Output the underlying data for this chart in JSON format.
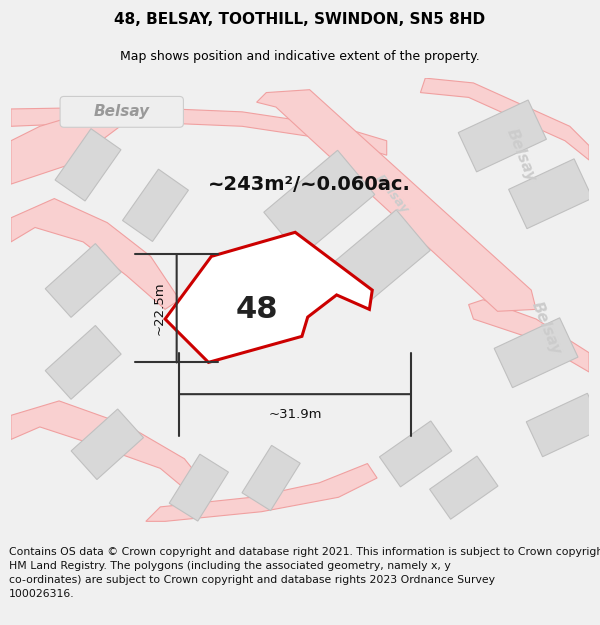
{
  "title": "48, BELSAY, TOOTHILL, SWINDON, SN5 8HD",
  "subtitle": "Map shows position and indicative extent of the property.",
  "footer": "Contains OS data © Crown copyright and database right 2021. This information is subject to Crown copyright and database rights 2023 and is reproduced with the permission of\nHM Land Registry. The polygons (including the associated geometry, namely x, y\nco-ordinates) are subject to Crown copyright and database rights 2023 Ordnance Survey\n100026316.",
  "bg_map": "#f7f7f7",
  "bg_outer": "#f0f0f0",
  "plot_fill": "#ffffff",
  "plot_border": "#cc0000",
  "road_fill": "#f9d0d0",
  "road_edge": "#f0a0a0",
  "block_fill": "#d8d8d8",
  "block_edge": "#c0c0c0",
  "street_label_color": "#cccccc",
  "dim_color": "#333333",
  "area_text": "~243m²/~0.060ac.",
  "dim_width": "~31.9m",
  "dim_height": "~22.5m",
  "plot_label": "48",
  "title_fontsize": 11,
  "subtitle_fontsize": 9,
  "footer_fontsize": 7.8,
  "area_fontsize": 14,
  "plot_label_fontsize": 22,
  "dim_fontsize": 9.5,
  "street_fontsize": 11
}
